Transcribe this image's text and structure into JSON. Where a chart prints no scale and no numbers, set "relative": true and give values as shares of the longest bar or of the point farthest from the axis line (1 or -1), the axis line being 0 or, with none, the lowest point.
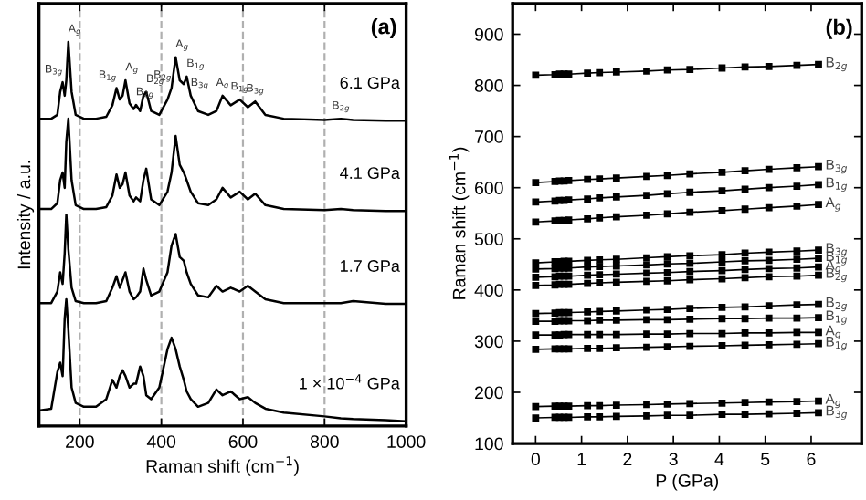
{
  "chart_data": [
    {
      "type": "line",
      "title": "(a)",
      "xlabel": "Raman shift (cm$^{−1}$)",
      "ylabel": "Intensity / a.u.",
      "relative": true,
      "tick_labels": "x",
      "xlim": [
        100,
        1000
      ],
      "xticks": [
        200,
        400,
        600,
        800,
        1000
      ],
      "ref_lines": [
        {
          "axis": "x",
          "value": 200,
          "color": "#b0b0b0",
          "line_style": "dashed"
        },
        {
          "axis": "x",
          "value": 400,
          "color": "#b0b0b0",
          "line_style": "dashed"
        },
        {
          "axis": "x",
          "value": 600,
          "color": "#b0b0b0",
          "line_style": "dashed"
        },
        {
          "axis": "x",
          "value": 800,
          "color": "#b0b0b0",
          "line_style": "dashed"
        }
      ],
      "x": [
        100,
        130,
        145,
        152,
        158,
        163,
        167,
        172,
        180,
        190,
        210,
        240,
        265,
        280,
        290,
        298,
        305,
        312,
        322,
        332,
        338,
        348,
        356,
        363,
        375,
        395,
        415,
        425,
        435,
        445,
        455,
        462,
        472,
        490,
        515,
        535,
        550,
        570,
        592,
        612,
        630,
        655,
        700,
        800,
        840,
        870,
        950,
        1000
      ],
      "series": [
        {
          "name": "6.1 GPa",
          "color": "#000000",
          "values": [
            0.8,
            0.8,
            0.81,
            0.87,
            0.895,
            0.86,
            0.9,
            1.0,
            0.87,
            0.81,
            0.8,
            0.8,
            0.805,
            0.835,
            0.88,
            0.85,
            0.86,
            0.9,
            0.84,
            0.825,
            0.836,
            0.82,
            0.86,
            0.87,
            0.82,
            0.81,
            0.85,
            0.88,
            0.96,
            0.9,
            0.89,
            0.91,
            0.86,
            0.82,
            0.81,
            0.82,
            0.86,
            0.835,
            0.85,
            0.83,
            0.845,
            0.81,
            0.8,
            0.797,
            0.8,
            0.797,
            0.795,
            0.795
          ]
        },
        {
          "name": "4.1 GPa",
          "color": "#000000",
          "values": [
            0.565,
            0.565,
            0.58,
            0.64,
            0.66,
            0.62,
            0.74,
            0.8,
            0.64,
            0.575,
            0.565,
            0.565,
            0.57,
            0.6,
            0.655,
            0.62,
            0.63,
            0.66,
            0.6,
            0.585,
            0.595,
            0.585,
            0.64,
            0.67,
            0.59,
            0.575,
            0.61,
            0.66,
            0.755,
            0.68,
            0.66,
            0.64,
            0.61,
            0.58,
            0.575,
            0.59,
            0.62,
            0.595,
            0.61,
            0.59,
            0.605,
            0.575,
            0.565,
            0.562,
            0.565,
            0.562,
            0.56,
            0.56
          ]
        },
        {
          "name": "1.7 GPa",
          "color": "#000000",
          "values": [
            0.32,
            0.32,
            0.35,
            0.4,
            0.37,
            0.45,
            0.55,
            0.46,
            0.36,
            0.325,
            0.32,
            0.32,
            0.325,
            0.36,
            0.39,
            0.36,
            0.38,
            0.4,
            0.35,
            0.33,
            0.335,
            0.35,
            0.41,
            0.38,
            0.34,
            0.35,
            0.4,
            0.47,
            0.5,
            0.44,
            0.43,
            0.4,
            0.37,
            0.34,
            0.335,
            0.365,
            0.35,
            0.36,
            0.35,
            0.365,
            0.35,
            0.33,
            0.32,
            0.32,
            0.32,
            0.325,
            0.318,
            0.318
          ]
        },
        {
          "name": "1 × 10$^{−4}$ GPa",
          "color": "#000000",
          "values": [
            0.04,
            0.045,
            0.14,
            0.165,
            0.13,
            0.28,
            0.33,
            0.25,
            0.1,
            0.06,
            0.05,
            0.05,
            0.07,
            0.12,
            0.1,
            0.13,
            0.145,
            0.13,
            0.1,
            0.11,
            0.11,
            0.155,
            0.13,
            0.08,
            0.07,
            0.1,
            0.2,
            0.23,
            0.2,
            0.155,
            0.12,
            0.09,
            0.07,
            0.05,
            0.06,
            0.095,
            0.08,
            0.09,
            0.07,
            0.075,
            0.06,
            0.045,
            0.035,
            0.025,
            0.02,
            0.018,
            0.015,
            0.012
          ]
        }
      ],
      "annotations": [
        {
          "text": "B$_{3g}$",
          "x": 158,
          "y": 0.895
        },
        {
          "text": "A$_{g}$",
          "x": 172,
          "y": 1.0
        },
        {
          "text": "B$_{1g}$",
          "x": 290,
          "y": 0.88
        },
        {
          "text": "A$_{g}$",
          "x": 312,
          "y": 0.9
        },
        {
          "text": "B$_{2g}$",
          "x": 338,
          "y": 0.836
        },
        {
          "text": "B$_{2g}$",
          "x": 363,
          "y": 0.87
        },
        {
          "text": "B$_{2g}$",
          "x": 425,
          "y": 0.88
        },
        {
          "text": "A$_{g}$",
          "x": 435,
          "y": 0.96
        },
        {
          "text": "B$_{1g}$",
          "x": 462,
          "y": 0.91
        },
        {
          "text": "B$_{3g}$",
          "x": 472,
          "y": 0.86
        },
        {
          "text": "A$_{g}$",
          "x": 550,
          "y": 0.86
        },
        {
          "text": "B$_{1g}$",
          "x": 592,
          "y": 0.85
        },
        {
          "text": "B$_{3g}$",
          "x": 630,
          "y": 0.845
        },
        {
          "text": "B$_{2g}$",
          "x": 840,
          "y": 0.8
        }
      ]
    },
    {
      "type": "line",
      "title": "(b)",
      "xlabel": "P (GPa)",
      "ylabel": "Raman shift (cm$^{−1}$)",
      "marker": "square",
      "legend": "right",
      "xlim": [
        -0.5,
        7.1
      ],
      "xticks": [
        0,
        1,
        2,
        3,
        4,
        5,
        6
      ],
      "ylim": [
        100,
        960
      ],
      "yticks": [
        100,
        200,
        300,
        400,
        500,
        600,
        700,
        800,
        900
      ],
      "x": [
        0,
        0.42,
        0.52,
        0.62,
        0.72,
        1.13,
        1.39,
        1.76,
        2.42,
        2.87,
        3.36,
        4.06,
        4.56,
        5.08,
        5.69,
        6.16
      ],
      "series": [
        {
          "name": "B$_{3g}$",
          "color": "#000000",
          "values": [
            150,
            151,
            151,
            151,
            151,
            152,
            152,
            153,
            154,
            155,
            155,
            157,
            157,
            158,
            159,
            160
          ]
        },
        {
          "name": "A$_{g}$",
          "color": "#000000",
          "values": [
            172,
            173,
            173,
            173,
            173,
            174,
            174,
            175,
            176,
            177,
            178,
            179,
            180,
            181,
            182,
            183
          ]
        },
        {
          "name": "B$_{1g}$",
          "color": "#000000",
          "values": [
            284,
            285,
            285,
            285,
            285,
            286,
            286,
            287,
            288,
            289,
            290,
            291,
            292,
            293,
            294,
            295
          ]
        },
        {
          "name": "A$_{g}$",
          "color": "#000000",
          "values": [
            312,
            312,
            312,
            313,
            313,
            313,
            313,
            313,
            314,
            314,
            315,
            315,
            316,
            316,
            317,
            317
          ]
        },
        {
          "name": "B$_{1g}$",
          "color": "#000000",
          "values": [
            339,
            339,
            340,
            340,
            340,
            340,
            341,
            341,
            342,
            342,
            343,
            344,
            344,
            345,
            345,
            346
          ]
        },
        {
          "name": "B$_{2g}$",
          "color": "#000000",
          "values": [
            354,
            355,
            356,
            356,
            356,
            357,
            358,
            359,
            361,
            362,
            364,
            366,
            367,
            369,
            371,
            372
          ]
        },
        {
          "name": "B$_{2g}$",
          "color": "#000000",
          "values": [
            409,
            410,
            411,
            411,
            411,
            413,
            414,
            415,
            417,
            418,
            420,
            422,
            424,
            426,
            427,
            429
          ]
        },
        {
          "name": "A$_{g}$",
          "color": "#000000",
          "values": [
            425,
            426,
            427,
            427,
            427,
            429,
            430,
            431,
            433,
            434,
            436,
            438,
            440,
            442,
            443,
            445
          ]
        },
        {
          "name": "B$_{1g}$",
          "color": "#000000",
          "values": [
            441,
            442,
            443,
            443,
            443,
            445,
            446,
            447,
            449,
            451,
            452,
            455,
            457,
            458,
            460,
            462
          ]
        },
        {
          "name": "B$_{3g}$",
          "color": "#000000",
          "values": [
            453,
            455,
            455,
            456,
            456,
            458,
            459,
            460,
            463,
            465,
            467,
            469,
            472,
            474,
            476,
            478
          ]
        },
        {
          "name": "A$_{g}$",
          "color": "#000000",
          "values": [
            533,
            535,
            536,
            536,
            537,
            539,
            541,
            543,
            546,
            549,
            552,
            555,
            558,
            561,
            564,
            567
          ]
        },
        {
          "name": "B$_{1g}$",
          "color": "#000000",
          "values": [
            572,
            574,
            575,
            575,
            576,
            578,
            580,
            582,
            585,
            588,
            591,
            594,
            597,
            600,
            603,
            606
          ]
        },
        {
          "name": "B$_{3g}$",
          "color": "#000000",
          "values": [
            610,
            612,
            613,
            613,
            614,
            616,
            617,
            619,
            622,
            624,
            627,
            630,
            633,
            636,
            639,
            641
          ]
        },
        {
          "name": "B$_{2g}$",
          "color": "#000000",
          "values": [
            820,
            821,
            822,
            822,
            822,
            824,
            825,
            826,
            828,
            830,
            831,
            834,
            836,
            837,
            839,
            841
          ]
        }
      ]
    }
  ]
}
